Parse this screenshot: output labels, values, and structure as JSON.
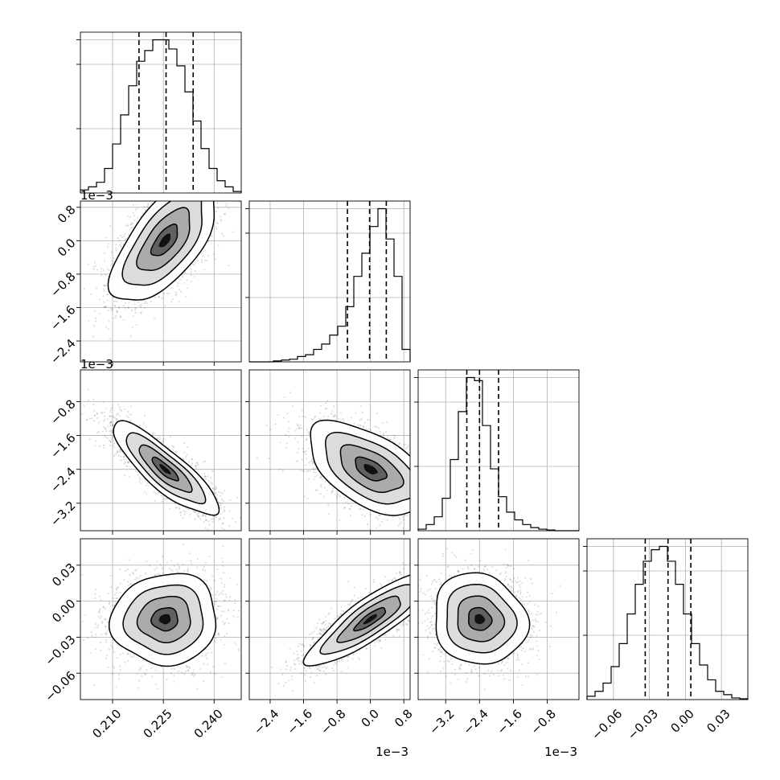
{
  "chart_data": {
    "type": "corner",
    "n_params": 4,
    "grid": true,
    "params": [
      {
        "index": 0,
        "range": [
          0.2005,
          0.248
        ],
        "ticks": [
          0.21,
          0.225,
          0.24
        ],
        "tick_labels": [
          "0.210",
          "0.225",
          "0.240"
        ],
        "offset_text": ""
      },
      {
        "index": 1,
        "range": [
          -2.9,
          0.95
        ],
        "ticks": [
          -2.4,
          -1.6,
          -0.8,
          0.0,
          0.8
        ],
        "tick_labels": [
          "−2.4",
          "−1.6",
          "−0.8",
          "0.0",
          "0.8"
        ],
        "offset_text": "1e−3"
      },
      {
        "index": 2,
        "range": [
          -3.85,
          -0.05
        ],
        "ticks": [
          -3.2,
          -2.4,
          -1.6,
          -0.8
        ],
        "tick_labels": [
          "−3.2",
          "−2.4",
          "−1.6",
          "−0.8"
        ],
        "offset_text": "1e−3"
      },
      {
        "index": 3,
        "range": [
          -0.082,
          0.052
        ],
        "ticks": [
          -0.06,
          -0.03,
          0.0,
          0.03
        ],
        "tick_labels": [
          "−0.06",
          "−0.03",
          "0.00",
          "0.03"
        ],
        "offset_text": ""
      }
    ],
    "diagonal": [
      {
        "index": 0,
        "bins": [
          0.2005,
          0.248
        ],
        "counts": [
          2,
          4,
          7,
          16,
          32,
          51,
          70,
          86,
          93,
          100,
          100,
          94,
          83,
          66,
          47,
          29,
          16,
          8,
          4,
          1
        ],
        "hist_max": 100,
        "quantiles": [
          0.2178,
          0.2258,
          0.2338
        ]
      },
      {
        "index": 1,
        "bins": [
          -2.9,
          0.95
        ],
        "counts": [
          0,
          0,
          0,
          0.5,
          1,
          1.5,
          3,
          4,
          7,
          10,
          15,
          20,
          31,
          48,
          61,
          76,
          86,
          69,
          48,
          7
        ],
        "hist_max": 86,
        "quantiles": [
          -0.55,
          -0.02,
          0.38
        ]
      },
      {
        "index": 2,
        "bins": [
          -3.85,
          -0.05
        ],
        "counts": [
          1,
          4,
          9,
          21,
          46,
          77,
          99,
          97,
          68,
          40,
          22,
          12,
          7,
          4,
          2,
          1,
          0.5,
          0,
          0,
          0
        ],
        "hist_max": 99,
        "quantiles": [
          -2.7,
          -2.4,
          -1.95
        ]
      },
      {
        "index": 3,
        "bins": [
          -0.082,
          0.052
        ],
        "counts": [
          2,
          5,
          10,
          20,
          34,
          52,
          70,
          84,
          91,
          93,
          84,
          70,
          52,
          34,
          21,
          12,
          5,
          3,
          1,
          0.5
        ],
        "hist_max": 93,
        "quantiles": [
          -0.0335,
          -0.0145,
          0.0045
        ]
      }
    ],
    "pairs": [
      {
        "x": 0,
        "y": 1,
        "mean": [
          0.2255,
          0.0
        ],
        "sd": [
          0.0078,
          0.00075
        ],
        "corr": 0.65
      },
      {
        "x": 0,
        "y": 2,
        "mean": [
          0.2255,
          -2.4
        ],
        "sd": [
          0.0078,
          0.00055
        ],
        "corr": -0.85
      },
      {
        "x": 1,
        "y": 2,
        "mean": [
          0.0,
          -2.4
        ],
        "sd": [
          0.00075,
          0.00055
        ],
        "corr": -0.55
      },
      {
        "x": 0,
        "y": 3,
        "mean": [
          0.2255,
          -0.015
        ],
        "sd": [
          0.0078,
          0.019
        ],
        "corr": 0.05
      },
      {
        "x": 1,
        "y": 3,
        "mean": [
          0.0,
          -0.015
        ],
        "sd": [
          0.00075,
          0.019
        ],
        "corr": 0.85
      },
      {
        "x": 2,
        "y": 3,
        "mean": [
          -2.4,
          -0.015
        ],
        "sd": [
          0.00055,
          0.019
        ],
        "corr": -0.1
      }
    ],
    "contour_levels_sigma": [
      0.5,
      1.0,
      1.5,
      2.0
    ],
    "colors": {
      "hist": "#000000",
      "points": "#000000",
      "density_max": "#000000",
      "grid": "#b0b0b0"
    }
  }
}
